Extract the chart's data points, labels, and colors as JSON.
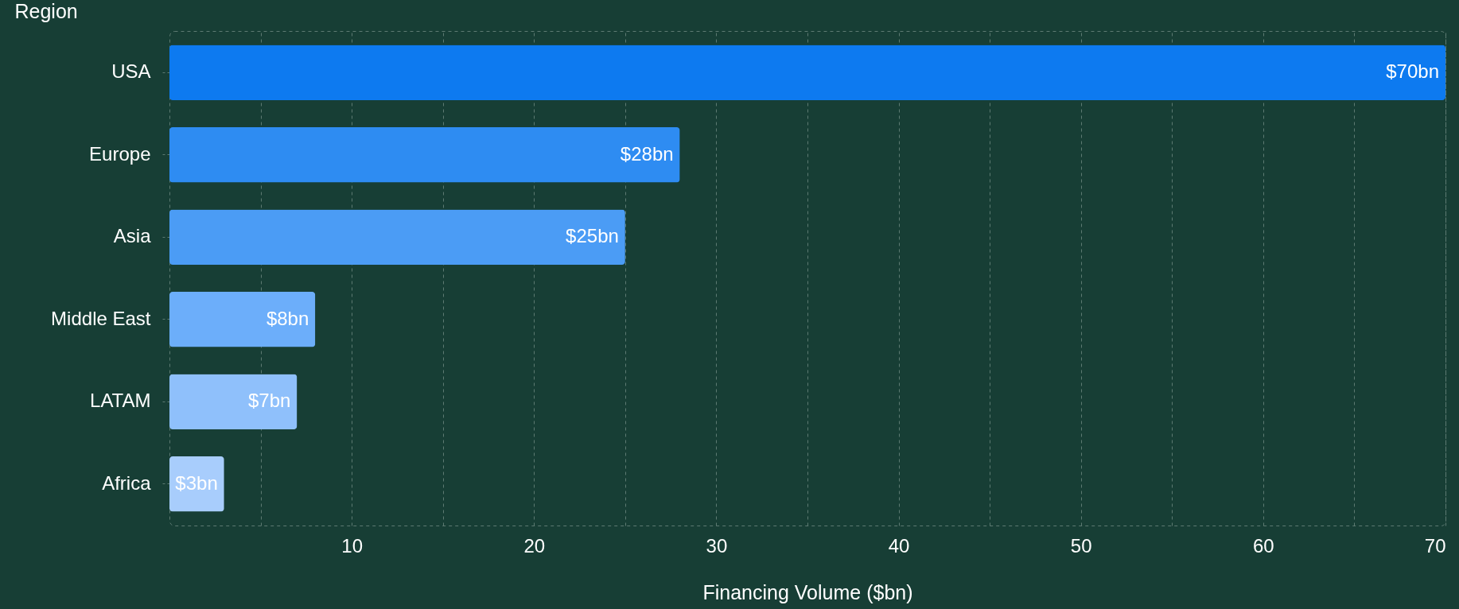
{
  "chart_data": {
    "type": "bar",
    "orientation": "horizontal",
    "xlabel": "Financing Volume ($bn)",
    "ylabel": "Region",
    "categories": [
      "USA",
      "Europe",
      "Asia",
      "Middle East",
      "LATAM",
      "Africa"
    ],
    "values": [
      70,
      28,
      25,
      8,
      7,
      3
    ],
    "value_labels": [
      "$70bn",
      "$28bn",
      "$25bn",
      "$8bn",
      "$7bn",
      "$3bn"
    ],
    "colors": [
      "#0d7af0",
      "#2e8cf2",
      "#4b9cf5",
      "#6caefa",
      "#8fc0fb",
      "#a8cdfc"
    ],
    "xlim": [
      0,
      70
    ],
    "xticks": [
      {
        "value": 5,
        "label": null
      },
      10,
      {
        "value": 15,
        "label": null
      },
      20,
      {
        "value": 25,
        "label": null
      },
      30,
      {
        "value": 35,
        "label": null
      },
      40,
      {
        "value": 45,
        "label": null
      },
      50,
      {
        "value": 55,
        "label": null
      },
      60,
      {
        "value": 65,
        "label": null
      },
      70
    ],
    "grid": "x"
  }
}
